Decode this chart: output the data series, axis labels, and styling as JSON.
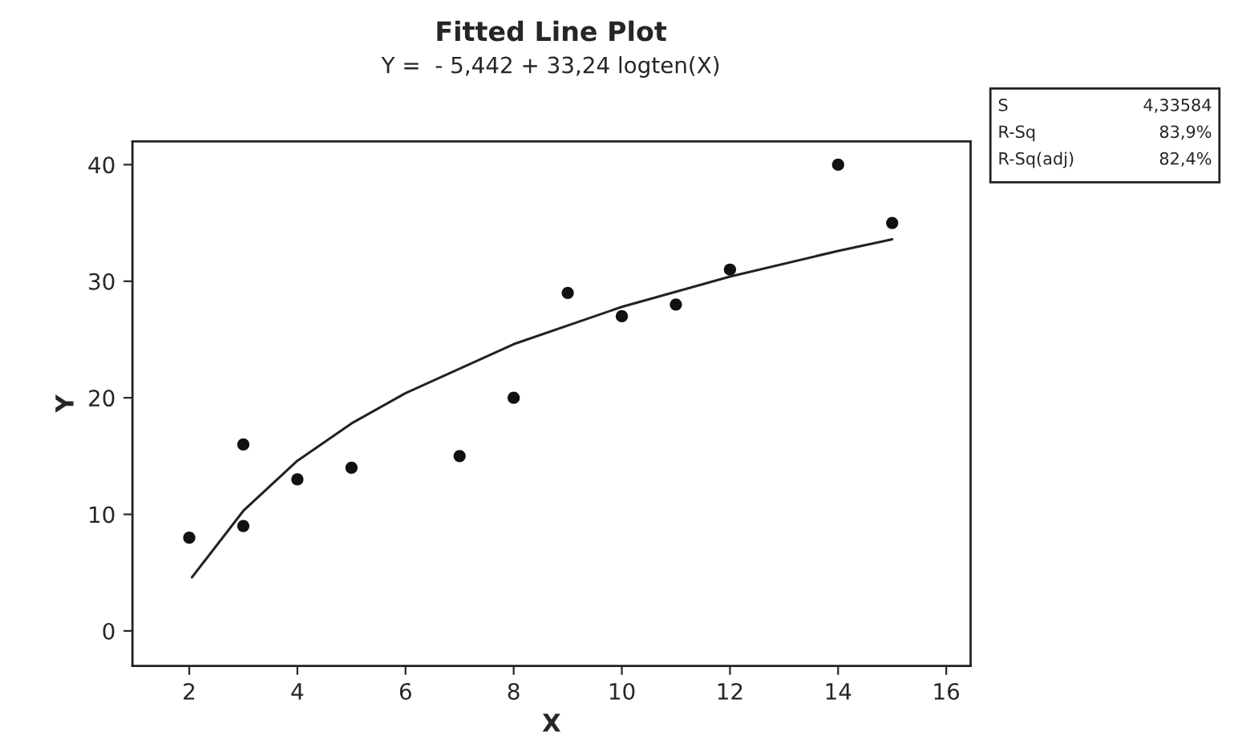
{
  "chart_data": {
    "type": "scatter",
    "title": "Fitted Line Plot",
    "subtitle": "Y =  - 5,442 + 33,24 logten(X)",
    "xlabel": "X",
    "ylabel": "Y",
    "xlim": [
      0.95,
      16.45
    ],
    "ylim": [
      -3,
      42
    ],
    "xticks": [
      2,
      4,
      6,
      8,
      10,
      12,
      14,
      16
    ],
    "yticks": [
      0,
      10,
      20,
      30,
      40
    ],
    "grid": false,
    "legend": false,
    "annotations": [
      "S",
      "4,33584",
      "R-Sq",
      "83,9%",
      "R-Sq(adj)",
      "82,4%"
    ],
    "series": [
      {
        "color": "#111111",
        "marker": "circle",
        "x": [
          2,
          3,
          3,
          4,
          5,
          7,
          8,
          9,
          10,
          11,
          12,
          14,
          15
        ],
        "values": [
          8,
          16,
          9,
          13,
          14,
          15,
          20,
          29,
          27,
          28,
          31,
          40,
          35
        ]
      },
      {
        "type": "line",
        "color": "#222222",
        "marker": "none",
        "line_style": "solid",
        "x": [
          2.05,
          3,
          4,
          5,
          6,
          8,
          10,
          12,
          14,
          15
        ],
        "values": [
          4.6,
          10.3,
          14.6,
          17.8,
          20.4,
          24.6,
          27.8,
          30.4,
          32.6,
          33.6
        ]
      }
    ]
  }
}
